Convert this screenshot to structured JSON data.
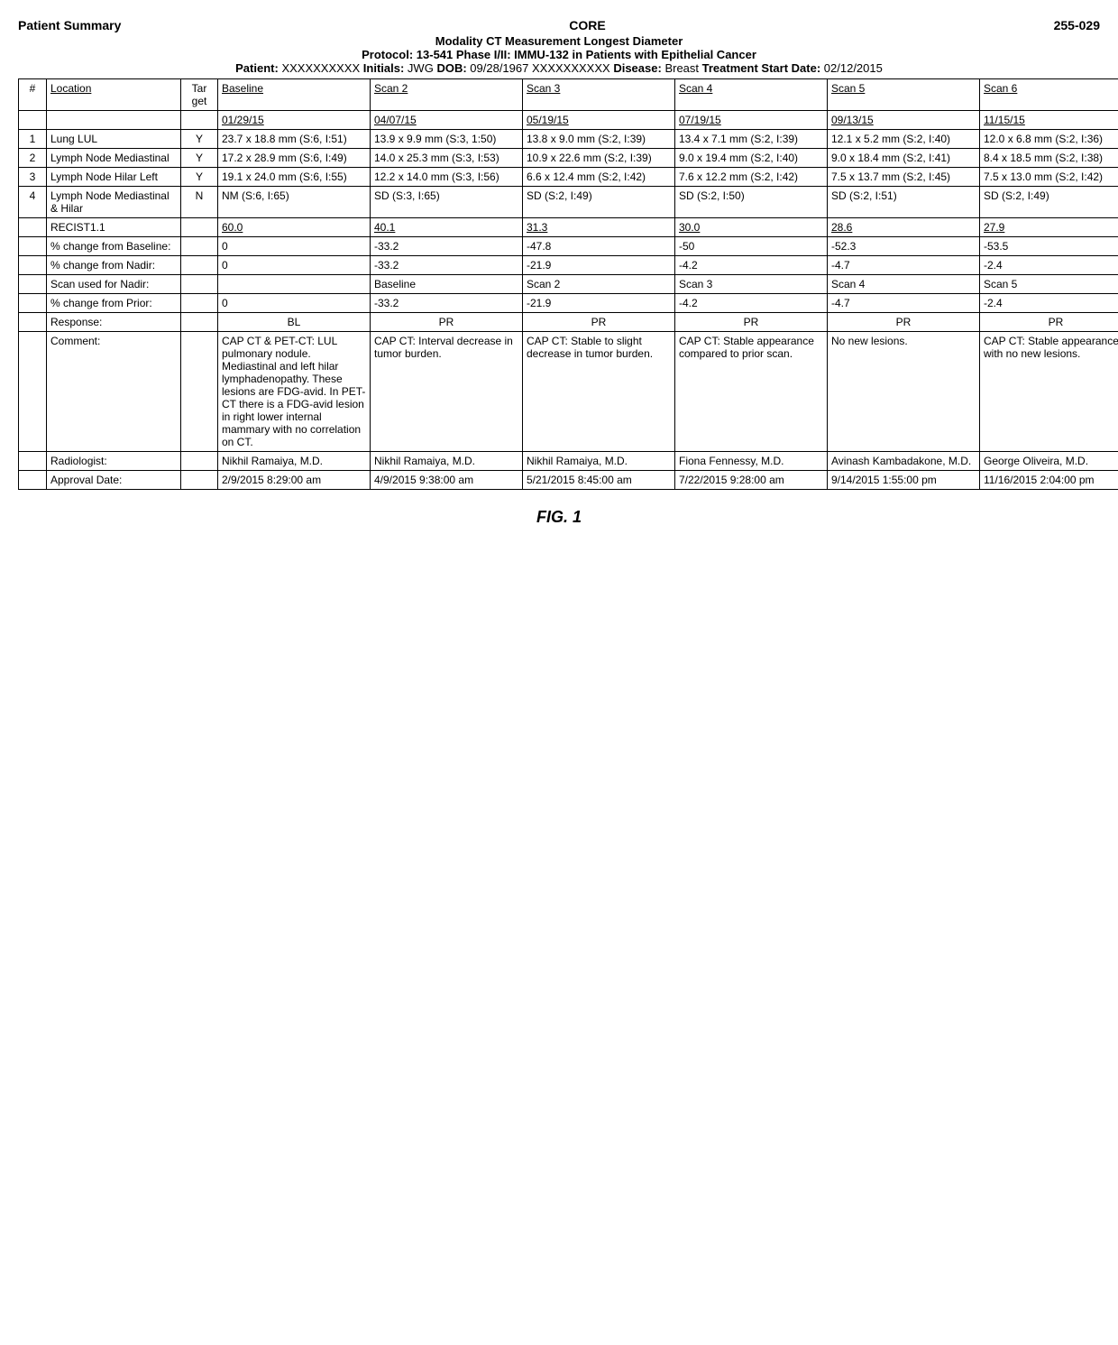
{
  "header": {
    "left_title": "Patient Summary",
    "center_label": "CORE",
    "right_label": "255-029",
    "modality_line": "Modality CT Measurement Longest Diameter",
    "protocol_line": "Protocol: 13-541 Phase I/II: IMMU-132 in Patients with Epithelial Cancer",
    "patient_label": "Patient:",
    "patient_val": "XXXXXXXXXX",
    "initials_label": "Initials:",
    "initials_val": "JWG",
    "dob_label": "DOB:",
    "dob_val": "09/28/1967",
    "masked": "XXXXXXXXXX",
    "disease_label": "Disease:",
    "disease_val": "Breast",
    "treatment_label": "Treatment",
    "start_date_label": "Start Date:",
    "start_date_val": "02/12/2015"
  },
  "cols": {
    "num": "#",
    "location": "Location",
    "target": "Tar get",
    "baseline": "Baseline",
    "s2": "Scan 2",
    "s3": "Scan 3",
    "s4": "Scan 4",
    "s5": "Scan 5",
    "s6": "Scan 6"
  },
  "date_row": {
    "baseline": "01/29/15",
    "s2": "04/07/15",
    "s3": "05/19/15",
    "s4": "07/19/15",
    "s5": "09/13/15",
    "s6": "11/15/15"
  },
  "rows": [
    {
      "n": "1",
      "loc": "Lung LUL",
      "tar": "Y",
      "baseline": "23.7 x 18.8 mm (S:6, I:51)",
      "s2": "13.9 x 9.9 mm (S:3, 1:50)",
      "s3": "13.8 x 9.0 mm (S:2, I:39)",
      "s4": "13.4 x 7.1 mm (S:2, I:39)",
      "s5": "12.1 x 5.2 mm (S:2, I:40)",
      "s6": "12.0 x 6.8 mm (S:2, I:36)"
    },
    {
      "n": "2",
      "loc": "Lymph Node Mediastinal",
      "tar": "Y",
      "baseline": "17.2 x 28.9 mm (S:6, I:49)",
      "s2": "14.0 x 25.3 mm (S:3, I:53)",
      "s3": "10.9 x 22.6 mm (S:2, I:39)",
      "s4": "9.0 x 19.4 mm (S:2, I:40)",
      "s5": "9.0 x 18.4 mm (S:2, I:41)",
      "s6": "8.4 x 18.5 mm (S:2, I:38)"
    },
    {
      "n": "3",
      "loc": "Lymph Node Hilar Left",
      "tar": "Y",
      "baseline": "19.1 x 24.0 mm (S:6, I:55)",
      "s2": "12.2 x 14.0 mm (S:3, I:56)",
      "s3": "6.6 x 12.4 mm (S:2, I:42)",
      "s4": "7.6 x 12.2 mm (S:2, I:42)",
      "s5": "7.5 x 13.7 mm (S:2, I:45)",
      "s6": "7.5 x 13.0 mm (S:2, I:42)"
    },
    {
      "n": "4",
      "loc": "Lymph Node Mediastinal & Hilar",
      "tar": "N",
      "baseline": "NM (S:6, I:65)",
      "s2": "SD (S:3, I:65)",
      "s3": "SD (S:2, I:49)",
      "s4": "SD (S:2, I:50)",
      "s5": "SD (S:2, I:51)",
      "s6": "SD (S:2, I:49)"
    }
  ],
  "recist": {
    "label": "RECIST1.1",
    "baseline": "60.0",
    "s2": "40.1",
    "s3": "31.3",
    "s4": "30.0",
    "s5": "28.6",
    "s6": "27.9"
  },
  "chg_baseline": {
    "label": "% change from Baseline:",
    "baseline": "0",
    "s2": "-33.2",
    "s3": "-47.8",
    "s4": "-50",
    "s5": "-52.3",
    "s6": "-53.5"
  },
  "chg_nadir": {
    "label": "% change from Nadir:",
    "baseline": "0",
    "s2": "-33.2",
    "s3": "-21.9",
    "s4": "-4.2",
    "s5": "-4.7",
    "s6": "-2.4"
  },
  "scan_used": {
    "label": "Scan used for Nadir:",
    "baseline": "",
    "s2": "Baseline",
    "s3": "Scan 2",
    "s4": "Scan 3",
    "s5": "Scan 4",
    "s6": "Scan 5"
  },
  "chg_prior": {
    "label": "% change from Prior:",
    "baseline": "0",
    "s2": "-33.2",
    "s3": "-21.9",
    "s4": "-4.2",
    "s5": "-4.7",
    "s6": "-2.4"
  },
  "response": {
    "label": "Response:",
    "baseline": "BL",
    "s2": "PR",
    "s3": "PR",
    "s4": "PR",
    "s5": "PR",
    "s6": "PR"
  },
  "comment": {
    "label": "Comment:",
    "baseline": "CAP CT & PET-CT: LUL pulmonary nodule. Mediastinal and left hilar lymphadenopathy. These lesions are FDG-avid. In PET-CT there is a FDG-avid lesion in right lower internal mammary with no correlation on CT.",
    "s2": "CAP CT: Interval decrease in tumor burden.",
    "s3": "CAP CT: Stable to slight decrease in tumor burden.",
    "s4": "CAP CT: Stable appearance compared to prior scan.",
    "s5": "No new lesions.",
    "s6": "CAP CT: Stable appearance with no new lesions."
  },
  "radiologist": {
    "label": "Radiologist:",
    "baseline": "Nikhil Ramaiya, M.D.",
    "s2": "Nikhil Ramaiya, M.D.",
    "s3": "Nikhil Ramaiya, M.D.",
    "s4": "Fiona Fennessy, M.D.",
    "s5": "Avinash Kambadakone, M.D.",
    "s6": "George Oliveira, M.D."
  },
  "approval": {
    "label": "Approval Date:",
    "baseline": "2/9/2015 8:29:00 am",
    "s2": "4/9/2015 9:38:00 am",
    "s3": "5/21/2015 8:45:00 am",
    "s4": "7/22/2015 9:28:00 am",
    "s5": "9/14/2015 1:55:00 pm",
    "s6": "11/16/2015 2:04:00 pm"
  },
  "figure": "FIG. 1"
}
